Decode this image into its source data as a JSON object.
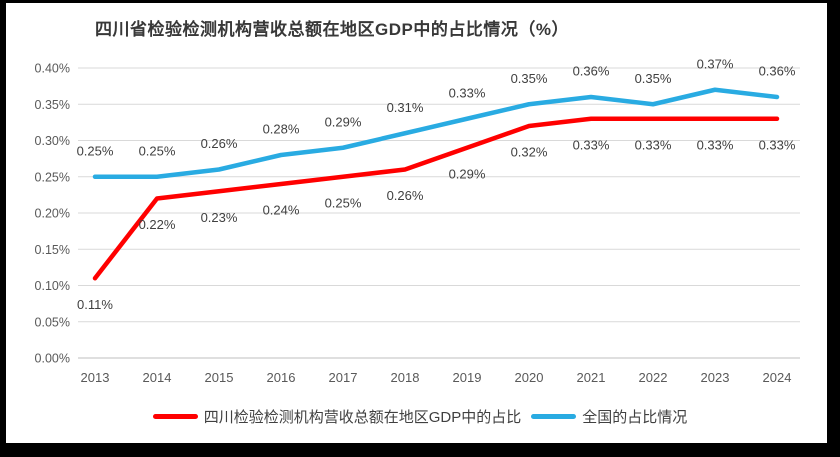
{
  "frame": {
    "border_color": "#000000",
    "background_color": "#ffffff"
  },
  "chart_data": {
    "type": "line",
    "title": "四川省检验检测机构营收总额在地区GDP中的占比情况（%）",
    "categories": [
      "2013",
      "2014",
      "2015",
      "2016",
      "2017",
      "2018",
      "2019",
      "2020",
      "2021",
      "2022",
      "2023",
      "2024"
    ],
    "series": [
      {
        "name": "四川检验检测机构营收总额在地区GDP中的占比",
        "color": "#FF0000",
        "values": [
          0.11,
          0.22,
          0.23,
          0.24,
          0.25,
          0.26,
          0.29,
          0.32,
          0.33,
          0.33,
          0.33,
          0.33
        ],
        "labels": [
          "0.11%",
          "0.22%",
          "0.23%",
          "0.24%",
          "0.25%",
          "0.26%",
          "0.29%",
          "0.32%",
          "0.33%",
          "0.33%",
          "0.33%",
          "0.33%"
        ],
        "label_position": "below"
      },
      {
        "name": "全国的占比情况",
        "color": "#29ABE2",
        "values": [
          0.25,
          0.25,
          0.26,
          0.28,
          0.29,
          0.31,
          0.33,
          0.35,
          0.36,
          0.35,
          0.37,
          0.36
        ],
        "labels": [
          "0.25%",
          "0.25%",
          "0.26%",
          "0.28%",
          "0.29%",
          "0.31%",
          "0.33%",
          "0.35%",
          "0.36%",
          "0.35%",
          "0.37%",
          "0.36%"
        ],
        "label_position": "above"
      }
    ],
    "y_axis": {
      "min": 0,
      "max": 0.4,
      "step": 0.05,
      "tick_labels": [
        "0.00%",
        "0.05%",
        "0.10%",
        "0.15%",
        "0.20%",
        "0.25%",
        "0.30%",
        "0.35%",
        "0.40%"
      ]
    },
    "xlabel": "",
    "ylabel": "",
    "grid": true,
    "legend_position": "bottom",
    "colors": {
      "gridline": "#D9D9D9",
      "axis_line": "#BFBFBF",
      "tick_text": "#595959",
      "data_label_text": "#404040"
    }
  }
}
